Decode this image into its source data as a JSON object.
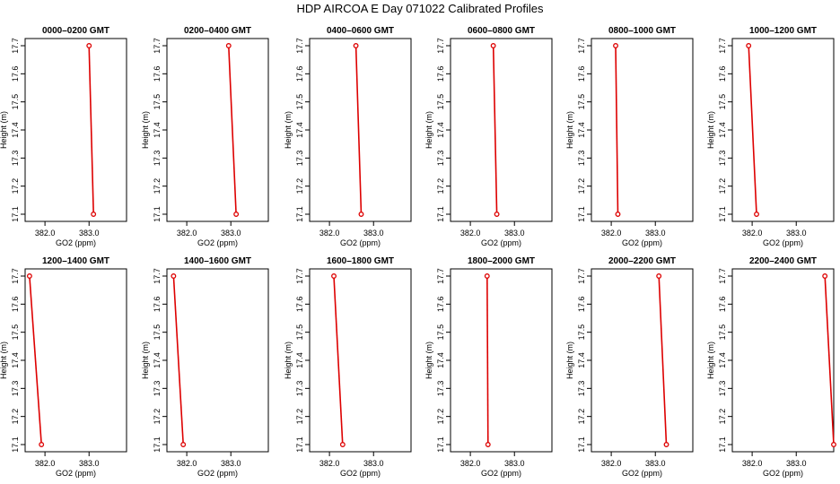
{
  "figure": {
    "title": "HDP  AIRCOA E  Day 071022  Calibrated Profiles"
  },
  "colors": {
    "line": "#dd0000",
    "marker": "#dd0000",
    "axis": "#000000"
  },
  "chart_data": [
    {
      "type": "line",
      "title": "0000–0200 GMT",
      "xlabel": "GO2 (ppm)",
      "ylabel": "Height (m)",
      "xlim": [
        381.55,
        383.85
      ],
      "ylim": [
        17.08,
        17.72
      ],
      "xticks": [
        "382.0",
        "383.0"
      ],
      "yticks": [
        "17.1",
        "17.2",
        "17.3",
        "17.4",
        "17.5",
        "17.6",
        "17.7"
      ],
      "x": [
        383.1,
        383.0
      ],
      "y": [
        17.1,
        17.7
      ]
    },
    {
      "type": "line",
      "title": "0200–0400 GMT",
      "xlabel": "GO2 (ppm)",
      "ylabel": "Height (m)",
      "xlim": [
        381.55,
        383.85
      ],
      "ylim": [
        17.08,
        17.72
      ],
      "xticks": [
        "382.0",
        "383.0"
      ],
      "yticks": [
        "17.1",
        "17.2",
        "17.3",
        "17.4",
        "17.5",
        "17.6",
        "17.7"
      ],
      "x": [
        383.12,
        382.95
      ],
      "y": [
        17.1,
        17.7
      ]
    },
    {
      "type": "line",
      "title": "0400–0600 GMT",
      "xlabel": "GO2 (ppm)",
      "ylabel": "Height (m)",
      "xlim": [
        381.55,
        383.85
      ],
      "ylim": [
        17.08,
        17.72
      ],
      "xticks": [
        "382.0",
        "383.0"
      ],
      "yticks": [
        "17.1",
        "17.2",
        "17.3",
        "17.4",
        "17.5",
        "17.6",
        "17.7"
      ],
      "x": [
        382.72,
        382.6
      ],
      "y": [
        17.1,
        17.7
      ]
    },
    {
      "type": "line",
      "title": "0600–0800 GMT",
      "xlabel": "GO2 (ppm)",
      "ylabel": "Height (m)",
      "xlim": [
        381.55,
        383.85
      ],
      "ylim": [
        17.08,
        17.72
      ],
      "xticks": [
        "382.0",
        "383.0"
      ],
      "yticks": [
        "17.1",
        "17.2",
        "17.3",
        "17.4",
        "17.5",
        "17.6",
        "17.7"
      ],
      "x": [
        382.6,
        382.52
      ],
      "y": [
        17.1,
        17.7
      ]
    },
    {
      "type": "line",
      "title": "0800–1000 GMT",
      "xlabel": "GO2 (ppm)",
      "ylabel": "Height (m)",
      "xlim": [
        381.55,
        383.85
      ],
      "ylim": [
        17.08,
        17.72
      ],
      "xticks": [
        "382.0",
        "383.0"
      ],
      "yticks": [
        "17.1",
        "17.2",
        "17.3",
        "17.4",
        "17.5",
        "17.6",
        "17.7"
      ],
      "x": [
        382.15,
        382.1
      ],
      "y": [
        17.1,
        17.7
      ]
    },
    {
      "type": "line",
      "title": "1000–1200 GMT",
      "xlabel": "GO2 (ppm)",
      "ylabel": "Height (m)",
      "xlim": [
        381.55,
        383.85
      ],
      "ylim": [
        17.08,
        17.72
      ],
      "xticks": [
        "382.0",
        "383.0"
      ],
      "yticks": [
        "17.1",
        "17.2",
        "17.3",
        "17.4",
        "17.5",
        "17.6",
        "17.7"
      ],
      "x": [
        382.1,
        381.92
      ],
      "y": [
        17.1,
        17.7
      ]
    },
    {
      "type": "line",
      "title": "1200–1400 GMT",
      "xlabel": "GO2 (ppm)",
      "ylabel": "Height (m)",
      "xlim": [
        381.55,
        383.85
      ],
      "ylim": [
        17.08,
        17.72
      ],
      "xticks": [
        "382.0",
        "383.0"
      ],
      "yticks": [
        "17.1",
        "17.2",
        "17.3",
        "17.4",
        "17.5",
        "17.6",
        "17.7"
      ],
      "x": [
        381.92,
        381.65
      ],
      "y": [
        17.1,
        17.7
      ]
    },
    {
      "type": "line",
      "title": "1400–1600 GMT",
      "xlabel": "GO2 (ppm)",
      "ylabel": "Height (m)",
      "xlim": [
        381.55,
        383.85
      ],
      "ylim": [
        17.08,
        17.72
      ],
      "xticks": [
        "382.0",
        "383.0"
      ],
      "yticks": [
        "17.1",
        "17.2",
        "17.3",
        "17.4",
        "17.5",
        "17.6",
        "17.7"
      ],
      "x": [
        381.92,
        381.7
      ],
      "y": [
        17.1,
        17.7
      ]
    },
    {
      "type": "line",
      "title": "1600–1800 GMT",
      "xlabel": "GO2 (ppm)",
      "ylabel": "Height (m)",
      "xlim": [
        381.55,
        383.85
      ],
      "ylim": [
        17.08,
        17.72
      ],
      "xticks": [
        "382.0",
        "383.0"
      ],
      "yticks": [
        "17.1",
        "17.2",
        "17.3",
        "17.4",
        "17.5",
        "17.6",
        "17.7"
      ],
      "x": [
        382.3,
        382.1
      ],
      "y": [
        17.1,
        17.7
      ]
    },
    {
      "type": "line",
      "title": "1800–2000 GMT",
      "xlabel": "GO2 (ppm)",
      "ylabel": "Height (m)",
      "xlim": [
        381.55,
        383.85
      ],
      "ylim": [
        17.08,
        17.72
      ],
      "xticks": [
        "382.0",
        "383.0"
      ],
      "yticks": [
        "17.1",
        "17.2",
        "17.3",
        "17.4",
        "17.5",
        "17.6",
        "17.7"
      ],
      "x": [
        382.4,
        382.38
      ],
      "y": [
        17.1,
        17.7
      ]
    },
    {
      "type": "line",
      "title": "2000–2200 GMT",
      "xlabel": "GO2 (ppm)",
      "ylabel": "Height (m)",
      "xlim": [
        381.55,
        383.85
      ],
      "ylim": [
        17.08,
        17.72
      ],
      "xticks": [
        "382.0",
        "383.0"
      ],
      "yticks": [
        "17.1",
        "17.2",
        "17.3",
        "17.4",
        "17.5",
        "17.6",
        "17.7"
      ],
      "x": [
        383.25,
        383.08
      ],
      "y": [
        17.1,
        17.7
      ]
    },
    {
      "type": "line",
      "title": "2200–2400 GMT",
      "xlabel": "GO2 (ppm)",
      "ylabel": "Height (m)",
      "xlim": [
        381.55,
        383.85
      ],
      "ylim": [
        17.08,
        17.72
      ],
      "xticks": [
        "382.0",
        "383.0"
      ],
      "yticks": [
        "17.1",
        "17.2",
        "17.3",
        "17.4",
        "17.5",
        "17.6",
        "17.7"
      ],
      "x": [
        383.85,
        383.65
      ],
      "y": [
        17.1,
        17.7
      ]
    }
  ]
}
